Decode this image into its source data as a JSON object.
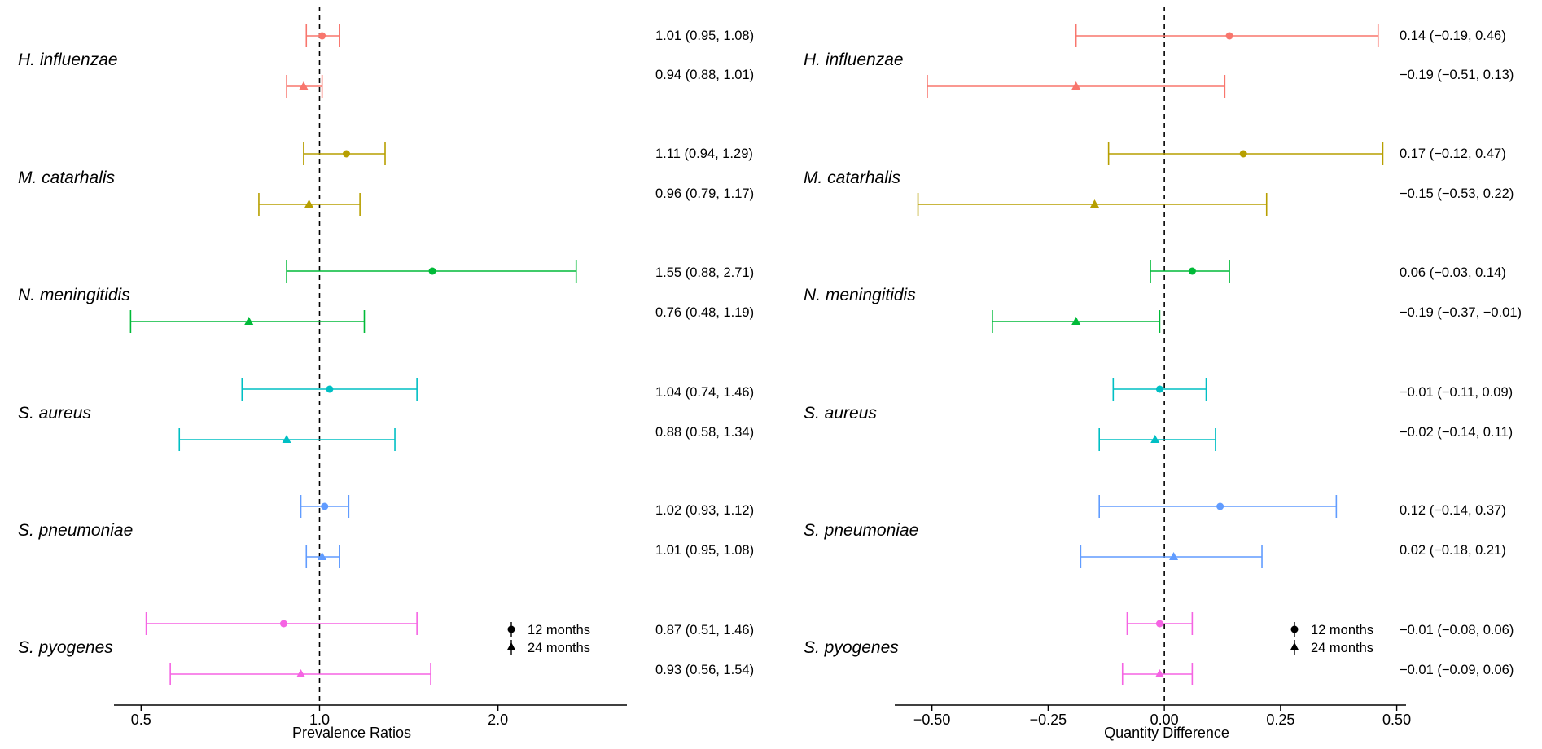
{
  "chart_data": [
    {
      "type": "forest",
      "xlabel": "Prevalence Ratios",
      "xscale": "log",
      "xlim": [
        0.45,
        3.3
      ],
      "xticks": [
        0.5,
        1.0,
        2.0
      ],
      "xtick_labels": [
        "0.5",
        "1.0",
        "2.0"
      ],
      "reference_line": 1.0,
      "legend_position": "bottom-right",
      "legend": [
        {
          "label": "12 months",
          "marker": "circle"
        },
        {
          "label": "24 months",
          "marker": "triangle"
        }
      ],
      "groups": [
        {
          "name": "H. influenzae",
          "color": "#F8766D",
          "rows": [
            {
              "timepoint": "12 months",
              "estimate": 1.01,
              "lower": 0.95,
              "upper": 1.08,
              "label": "1.01 (0.95, 1.08)"
            },
            {
              "timepoint": "24 months",
              "estimate": 0.94,
              "lower": 0.88,
              "upper": 1.01,
              "label": "0.94 (0.88, 1.01)"
            }
          ]
        },
        {
          "name": "M. catarhalis",
          "color": "#B79F00",
          "rows": [
            {
              "timepoint": "12 months",
              "estimate": 1.11,
              "lower": 0.94,
              "upper": 1.29,
              "label": "1.11 (0.94, 1.29)"
            },
            {
              "timepoint": "24 months",
              "estimate": 0.96,
              "lower": 0.79,
              "upper": 1.17,
              "label": "0.96 (0.79, 1.17)"
            }
          ]
        },
        {
          "name": "N. meningitidis",
          "color": "#00BA38",
          "rows": [
            {
              "timepoint": "12 months",
              "estimate": 1.55,
              "lower": 0.88,
              "upper": 2.71,
              "label": "1.55 (0.88, 2.71)"
            },
            {
              "timepoint": "24 months",
              "estimate": 0.76,
              "lower": 0.48,
              "upper": 1.19,
              "label": "0.76 (0.48, 1.19)"
            }
          ]
        },
        {
          "name": "S. aureus",
          "color": "#00BFC4",
          "rows": [
            {
              "timepoint": "12 months",
              "estimate": 1.04,
              "lower": 0.74,
              "upper": 1.46,
              "label": "1.04 (0.74, 1.46)"
            },
            {
              "timepoint": "24 months",
              "estimate": 0.88,
              "lower": 0.58,
              "upper": 1.34,
              "label": "0.88 (0.58, 1.34)"
            }
          ]
        },
        {
          "name": "S. pneumoniae",
          "color": "#619CFF",
          "rows": [
            {
              "timepoint": "12 months",
              "estimate": 1.02,
              "lower": 0.93,
              "upper": 1.12,
              "label": "1.02 (0.93, 1.12)"
            },
            {
              "timepoint": "24 months",
              "estimate": 1.01,
              "lower": 0.95,
              "upper": 1.08,
              "label": "1.01 (0.95, 1.08)"
            }
          ]
        },
        {
          "name": "S. pyogenes",
          "color": "#F564E3",
          "rows": [
            {
              "timepoint": "12 months",
              "estimate": 0.87,
              "lower": 0.51,
              "upper": 1.46,
              "label": "0.87 (0.51, 1.46)"
            },
            {
              "timepoint": "24 months",
              "estimate": 0.93,
              "lower": 0.56,
              "upper": 1.54,
              "label": "0.93 (0.56, 1.54)"
            }
          ]
        }
      ]
    },
    {
      "type": "forest",
      "xlabel": "Quantity Difference",
      "xscale": "linear",
      "xlim": [
        -0.58,
        0.52
      ],
      "xticks": [
        -0.5,
        -0.25,
        0.0,
        0.25,
        0.5
      ],
      "xtick_labels": [
        "−0.50",
        "−0.25",
        "0.00",
        "0.25",
        "0.50"
      ],
      "reference_line": 0.0,
      "legend_position": "bottom-right",
      "legend": [
        {
          "label": "12 months",
          "marker": "circle"
        },
        {
          "label": "24 months",
          "marker": "triangle"
        }
      ],
      "groups": [
        {
          "name": "H. influenzae",
          "color": "#F8766D",
          "rows": [
            {
              "timepoint": "12 months",
              "estimate": 0.14,
              "lower": -0.19,
              "upper": 0.46,
              "label": "0.14 (−0.19, 0.46)"
            },
            {
              "timepoint": "24 months",
              "estimate": -0.19,
              "lower": -0.51,
              "upper": 0.13,
              "label": "−0.19 (−0.51, 0.13)"
            }
          ]
        },
        {
          "name": "M. catarhalis",
          "color": "#B79F00",
          "rows": [
            {
              "timepoint": "12 months",
              "estimate": 0.17,
              "lower": -0.12,
              "upper": 0.47,
              "label": "0.17 (−0.12, 0.47)"
            },
            {
              "timepoint": "24 months",
              "estimate": -0.15,
              "lower": -0.53,
              "upper": 0.22,
              "label": "−0.15 (−0.53, 0.22)"
            }
          ]
        },
        {
          "name": "N. meningitidis",
          "color": "#00BA38",
          "rows": [
            {
              "timepoint": "12 months",
              "estimate": 0.06,
              "lower": -0.03,
              "upper": 0.14,
              "label": "0.06 (−0.03, 0.14)"
            },
            {
              "timepoint": "24 months",
              "estimate": -0.19,
              "lower": -0.37,
              "upper": -0.01,
              "label": "−0.19 (−0.37, −0.01)"
            }
          ]
        },
        {
          "name": "S. aureus",
          "color": "#00BFC4",
          "rows": [
            {
              "timepoint": "12 months",
              "estimate": -0.01,
              "lower": -0.11,
              "upper": 0.09,
              "label": "−0.01 (−0.11, 0.09)"
            },
            {
              "timepoint": "24 months",
              "estimate": -0.02,
              "lower": -0.14,
              "upper": 0.11,
              "label": "−0.02 (−0.14, 0.11)"
            }
          ]
        },
        {
          "name": "S. pneumoniae",
          "color": "#619CFF",
          "rows": [
            {
              "timepoint": "12 months",
              "estimate": 0.12,
              "lower": -0.14,
              "upper": 0.37,
              "label": "0.12 (−0.14, 0.37)"
            },
            {
              "timepoint": "24 months",
              "estimate": 0.02,
              "lower": -0.18,
              "upper": 0.21,
              "label": "0.02 (−0.18, 0.21)"
            }
          ]
        },
        {
          "name": "S. pyogenes",
          "color": "#F564E3",
          "rows": [
            {
              "timepoint": "12 months",
              "estimate": -0.01,
              "lower": -0.08,
              "upper": 0.06,
              "label": "−0.01 (−0.08, 0.06)"
            },
            {
              "timepoint": "24 months",
              "estimate": -0.01,
              "lower": -0.09,
              "upper": 0.06,
              "label": "−0.01 (−0.09, 0.06)"
            }
          ]
        }
      ]
    }
  ]
}
